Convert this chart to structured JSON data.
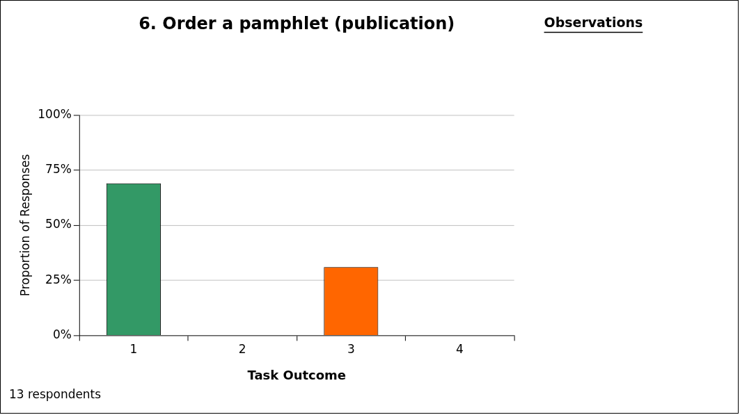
{
  "chart_data": {
    "type": "bar",
    "title": "6. Order a pamphlet (publication)",
    "xlabel": "Task Outcome",
    "ylabel": "Proportion of Responses",
    "categories": [
      "1",
      "2",
      "3",
      "4"
    ],
    "values": [
      69,
      0,
      31,
      0
    ],
    "colors": [
      "#339966",
      null,
      "#ff6600",
      null
    ],
    "ylim": [
      0,
      100
    ],
    "yticks": [
      {
        "value": 0,
        "label": "0%"
      },
      {
        "value": 25,
        "label": "25%"
      },
      {
        "value": 50,
        "label": "50%"
      },
      {
        "value": 75,
        "label": "75%"
      },
      {
        "value": 100,
        "label": "100%"
      }
    ],
    "grid": "y",
    "legend": false,
    "annotations": [
      "Observations",
      "13 respondents"
    ]
  }
}
